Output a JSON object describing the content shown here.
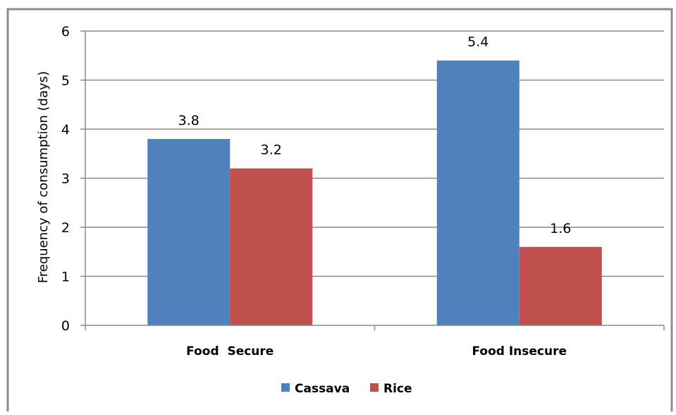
{
  "chart_data": {
    "type": "bar",
    "categories": [
      "Food  Secure",
      "Food Insecure"
    ],
    "series": [
      {
        "name": "Cassava",
        "values": [
          3.8,
          5.4
        ],
        "color": "#4F81BD"
      },
      {
        "name": "Rice",
        "values": [
          3.2,
          1.6
        ],
        "color": "#C0504D"
      }
    ],
    "data_labels": [
      [
        "3.8",
        "5.4"
      ],
      [
        "3.2",
        "1.6"
      ]
    ],
    "title": "",
    "xlabel": "",
    "ylabel": "Frequency of consumption (days)",
    "ylim": [
      0,
      6
    ],
    "yticks": [
      "0",
      "1",
      "2",
      "3",
      "4",
      "5",
      "6"
    ],
    "grid": true,
    "legend_position": "bottom"
  }
}
